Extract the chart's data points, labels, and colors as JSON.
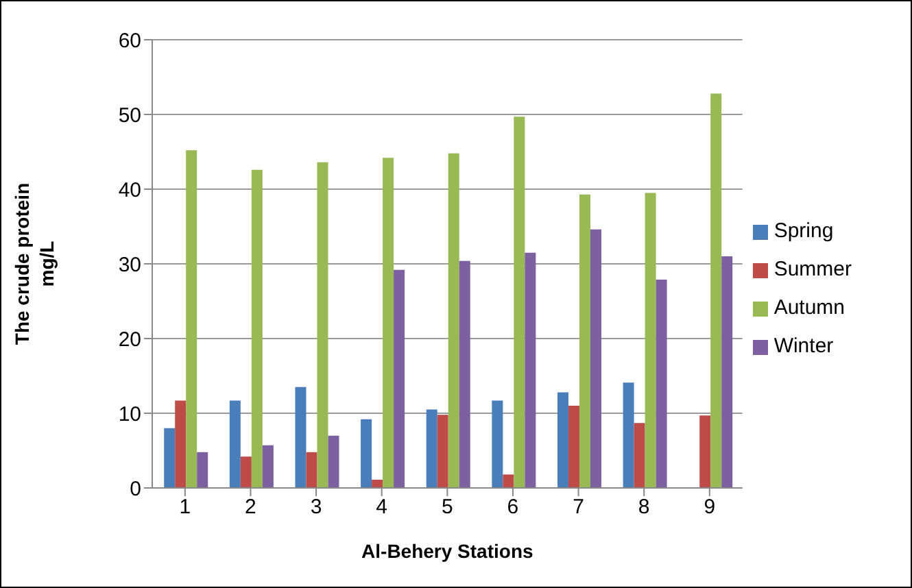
{
  "chart_data": {
    "type": "bar",
    "xlabel": "Al-Behery Stations",
    "ylabel": "The crude protein mg/L",
    "categories": [
      "1",
      "2",
      "3",
      "4",
      "5",
      "6",
      "7",
      "8",
      "9"
    ],
    "series": [
      {
        "name": "Spring",
        "color": "#4a7ebb",
        "values": [
          8,
          11.7,
          13.5,
          9.2,
          10.5,
          11.7,
          12.8,
          14.1,
          null
        ]
      },
      {
        "name": "Summer",
        "color": "#be4b48",
        "values": [
          11.7,
          4.2,
          4.8,
          1.1,
          9.8,
          1.8,
          11,
          8.7,
          9.7
        ]
      },
      {
        "name": "Autumn",
        "color": "#98b954",
        "values": [
          45.2,
          42.6,
          43.6,
          44.2,
          44.8,
          49.7,
          39.3,
          39.5,
          52.8
        ]
      },
      {
        "name": "Winter",
        "color": "#7d60a0",
        "values": [
          4.8,
          5.7,
          7,
          29.2,
          30.4,
          31.5,
          34.6,
          27.9,
          31
        ]
      }
    ],
    "ylim": [
      0,
      60
    ],
    "yticks": [
      0,
      10,
      20,
      30,
      40,
      50,
      60
    ],
    "grid": "y",
    "legend": "right"
  }
}
